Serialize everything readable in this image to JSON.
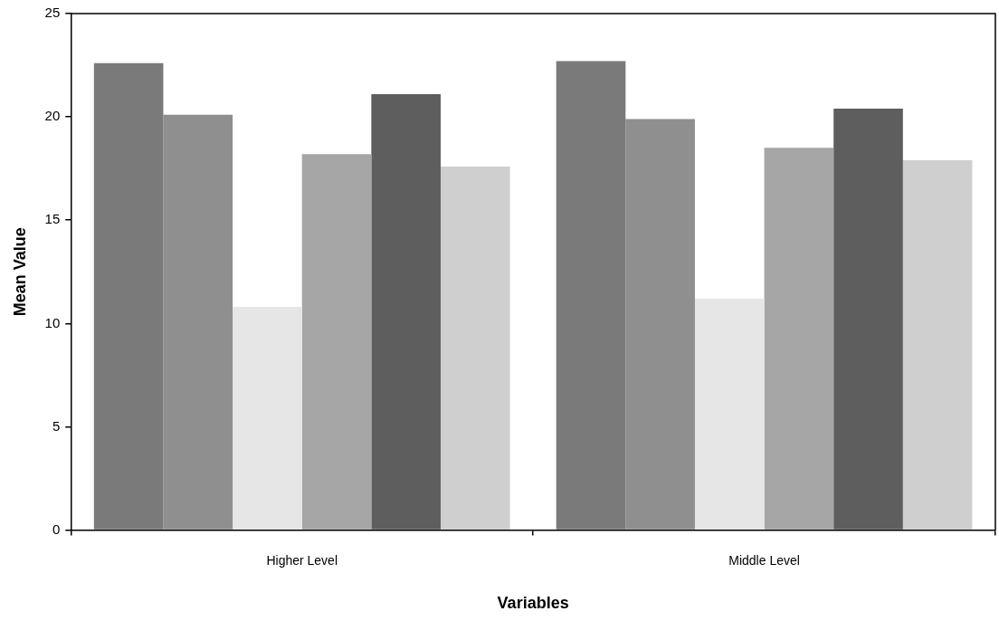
{
  "chart_data": {
    "type": "bar",
    "xlabel": "Variables",
    "ylabel": "Mean Value",
    "categories": [
      "Higher Level",
      "Middle Level"
    ],
    "series": [
      {
        "color": "#7a7a7a",
        "values": [
          22.6,
          22.7
        ]
      },
      {
        "color": "#8f8f8f",
        "values": [
          20.1,
          19.9
        ]
      },
      {
        "color": "#e6e6e6",
        "values": [
          10.8,
          11.2
        ]
      },
      {
        "color": "#a6a6a6",
        "values": [
          18.2,
          18.5
        ]
      },
      {
        "color": "#5e5e5e",
        "values": [
          21.1,
          20.4
        ]
      },
      {
        "color": "#cfcfcf",
        "values": [
          17.6,
          17.9
        ]
      }
    ],
    "ylim": [
      0,
      25
    ],
    "yticks": [
      0,
      5,
      10,
      15,
      20,
      25
    ],
    "grid": false,
    "legend": false
  }
}
